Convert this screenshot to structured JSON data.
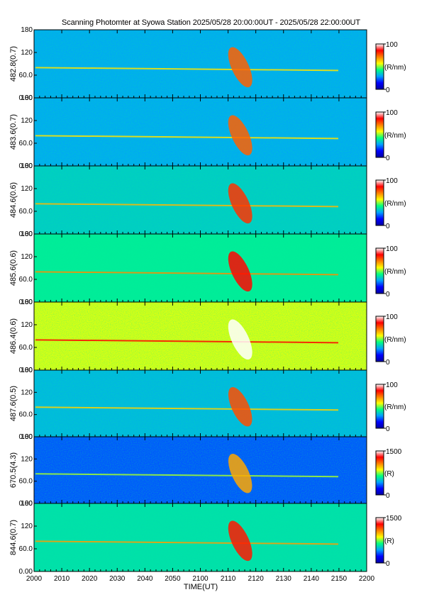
{
  "title": "Scanning Photomter at Syowa Station  2025/05/28 20:00:00UT - 2025/05/28 22:00:00UT",
  "xlabel": "TIME(UT)",
  "colors": {
    "colormap": [
      "#0000a0",
      "#0000ff",
      "#00a0ff",
      "#00ff80",
      "#ffff00",
      "#ff8000",
      "#ff0000",
      "#ffffff"
    ]
  },
  "chart_data": {
    "type": "heatmap",
    "x_ticks": [
      "2000",
      "2010",
      "2020",
      "2030",
      "2040",
      "2050",
      "2100",
      "2110",
      "2120",
      "2130",
      "2140",
      "2150",
      "2200"
    ],
    "xlim": [
      "2000",
      "2200"
    ],
    "panels": [
      {
        "ylabel": "482.8(0.7)",
        "y_ticks": [
          "180",
          "120",
          "60.0",
          "0.00"
        ],
        "ylim": [
          0,
          180
        ],
        "colorbar": {
          "max": "100",
          "unit": "(R/nm)",
          "min": "0"
        },
        "level": 0.3
      },
      {
        "ylabel": "483.6(0.7)",
        "y_ticks": [
          "180",
          "120",
          "60.0",
          "0.00"
        ],
        "ylim": [
          0,
          180
        ],
        "colorbar": {
          "max": "100",
          "unit": "(R/nm)",
          "min": "0"
        },
        "level": 0.3
      },
      {
        "ylabel": "484.6(0.6)",
        "y_ticks": [
          "180",
          "120",
          "60.0",
          "0.00"
        ],
        "ylim": [
          0,
          180
        ],
        "colorbar": {
          "max": "100",
          "unit": "(R/nm)",
          "min": "0"
        },
        "level": 0.35
      },
      {
        "ylabel": "485.6(0.6)",
        "y_ticks": [
          "180",
          "120",
          "60.0",
          "0.00"
        ],
        "ylim": [
          0,
          180
        ],
        "colorbar": {
          "max": "100",
          "unit": "(R/nm)",
          "min": "0"
        },
        "level": 0.4
      },
      {
        "ylabel": "486.4(0.6)",
        "y_ticks": [
          "180",
          "120",
          "60.0",
          "0.00"
        ],
        "ylim": [
          0,
          180
        ],
        "colorbar": {
          "max": "100",
          "unit": "(R/nm)",
          "min": "0"
        },
        "level": 0.55
      },
      {
        "ylabel": "487.6(0.5)",
        "y_ticks": [
          "180",
          "120",
          "60.0",
          "0.00"
        ],
        "ylim": [
          0,
          180
        ],
        "colorbar": {
          "max": "100",
          "unit": "(R/nm)",
          "min": "0"
        },
        "level": 0.32
      },
      {
        "ylabel": "670.5(4.3)",
        "y_ticks": [
          "180",
          "120",
          "60.0",
          "0.00"
        ],
        "ylim": [
          0,
          180
        ],
        "colorbar": {
          "max": "1500",
          "unit": "(R)",
          "min": "0"
        },
        "level": 0.22
      },
      {
        "ylabel": "844.6(0.7)",
        "y_ticks": [
          "180",
          "120",
          "60.0",
          "0.00"
        ],
        "ylim": [
          0,
          180
        ],
        "colorbar": {
          "max": "1500",
          "unit": "(R)",
          "min": "0"
        },
        "level": 0.38
      }
    ]
  }
}
